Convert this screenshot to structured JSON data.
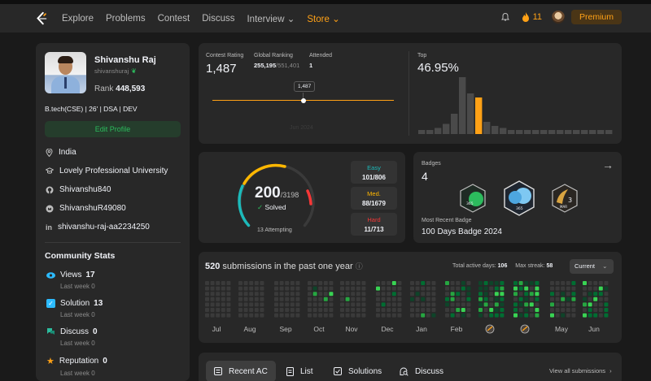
{
  "nav": {
    "items": [
      "Explore",
      "Problems",
      "Contest",
      "Discuss",
      "Interview",
      "Store"
    ],
    "streak": "11",
    "premium": "Premium"
  },
  "profile": {
    "name": "Shivanshu Raj",
    "username": "shivanshuraj",
    "rank_label": "Rank",
    "rank": "448,593",
    "bio": "B.tech(CSE) | 26' | DSA | DEV",
    "edit": "Edit Profile",
    "location": "India",
    "university": "Lovely Professional University",
    "github": "Shivanshu840",
    "email": "ShivanshuR49080",
    "linkedin": "shivanshu-raj-aa2234250"
  },
  "community": {
    "title": "Community Stats",
    "views_label": "Views",
    "views": "17",
    "solution_label": "Solution",
    "solution": "13",
    "discuss_label": "Discuss",
    "discuss": "0",
    "reputation_label": "Reputation",
    "reputation": "0",
    "last_week": "Last week",
    "zero": "0",
    "colors": {
      "views": "#2cbb5d",
      "solution": "#2cbbff",
      "discuss": "#2cbb9d",
      "reputation": "#ffa116"
    }
  },
  "contest": {
    "rating_label": "Contest Rating",
    "rating": "1,487",
    "global_label": "Global Ranking",
    "global_rank": "255,195",
    "global_total": "/551,401",
    "attended_label": "Attended",
    "attended": "1",
    "tooltip": "1,487",
    "faded_date": "Jun 2024",
    "top_label": "Top",
    "top": "46.95%",
    "chart_data": {
      "type": "bar",
      "title": "",
      "values": [
        1,
        1,
        1.5,
        2.5,
        5,
        14,
        10,
        9,
        3,
        2,
        1.5,
        1,
        1,
        1,
        1,
        1,
        1,
        1,
        1,
        1,
        1,
        1,
        1,
        1
      ],
      "highlight_index": 7,
      "colors": {
        "bar": "#4a4a4a",
        "highlight": "#ffa116"
      }
    }
  },
  "solved": {
    "count": "200",
    "total": "/3198",
    "label": "Solved",
    "attempting": "13 Attempting",
    "easy_label": "Easy",
    "easy": "101/806",
    "med_label": "Med.",
    "med": "88/1679",
    "hard_label": "Hard",
    "hard": "11/713",
    "colors": {
      "easy": "#1cbaba",
      "med": "#ffb700",
      "hard": "#f63737"
    }
  },
  "badges": {
    "label": "Badges",
    "count": "4",
    "recent_label": "Most Recent Badge",
    "recent": "100 Days Badge 2024",
    "badge_texts": [
      "365",
      "365",
      "3",
      "MAR"
    ]
  },
  "calendar": {
    "count": "520",
    "text": "submissions in the past one year",
    "active_label": "Total active days:",
    "active": "106",
    "streak_label": "Max streak:",
    "streak": "58",
    "select": "Current",
    "months": [
      "Jul",
      "Aug",
      "Sep",
      "Oct",
      "Nov",
      "Dec",
      "Jan",
      "Feb",
      "",
      "",
      "May",
      "Jun"
    ]
  },
  "tabs": {
    "recent": "Recent AC",
    "list": "List",
    "solutions": "Solutions",
    "discuss": "Discuss",
    "view_all": "View all submissions"
  }
}
